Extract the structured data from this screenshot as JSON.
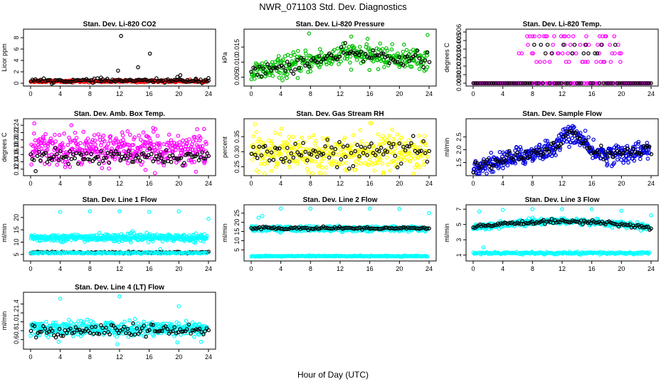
{
  "figure": {
    "title": "NWR_071103  Std. Dev. Diagnostics",
    "xlabel": "Hour of Day (UTC)"
  },
  "chart_data": [
    {
      "type": "scatter",
      "title": "Stan. Dev. Li-820 CO2",
      "ylabel": "Licor ppm",
      "xlim": [
        0,
        24
      ],
      "ylim": [
        0,
        9
      ],
      "xticks": [
        "0",
        "4",
        "8",
        "12",
        "16",
        "20",
        "24"
      ],
      "yticks": [
        "0",
        "2",
        "4",
        "6",
        "8"
      ],
      "series": [
        {
          "color": "#ff0000",
          "base": 0.35,
          "spread": 0.1,
          "n": 220,
          "symbol": "o",
          "outliers": []
        },
        {
          "color": "#000000",
          "base": 0.45,
          "spread": 0.15,
          "n": 110,
          "symbol": "o",
          "outliers": [
            [
              12.2,
              8.3
            ],
            [
              11.8,
              2.2
            ],
            [
              14.5,
              2.8
            ],
            [
              16.1,
              5.2
            ],
            [
              9.5,
              1.0
            ],
            [
              19.8,
              1.1
            ],
            [
              20.2,
              1.4
            ],
            [
              22.3,
              0.8
            ],
            [
              24.0,
              0.9
            ]
          ]
        }
      ]
    },
    {
      "type": "scatter",
      "title": "Stan. Dev. Li-820 Pressure",
      "ylabel": "kPa",
      "xlim": [
        0,
        24
      ],
      "ylim": [
        0.003,
        0.02
      ],
      "xticks": [
        "0",
        "4",
        "8",
        "12",
        "16",
        "20",
        "24"
      ],
      "yticks": [
        "0.005",
        "0.010",
        "0.015"
      ],
      "series": [
        {
          "color": "#00c000",
          "curve": "pressure",
          "spread": 0.0018,
          "n": 340,
          "symbol": "o",
          "outliers": [
            [
              7.8,
              0.0195
            ],
            [
              13.5,
              0.0185
            ],
            [
              23.8,
              0.019
            ]
          ]
        },
        {
          "color": "#000000",
          "curve": "pressure",
          "spread": 0.0012,
          "n": 90,
          "symbol": "o",
          "outliers": []
        }
      ]
    },
    {
      "type": "scatter",
      "title": "Stan. Dev. Li-820 Temp.",
      "ylabel": "degrees C",
      "xlim": [
        0,
        24
      ],
      "ylim": [
        0,
        0.006
      ],
      "xticks": [
        "0",
        "4",
        "8",
        "12",
        "16",
        "20",
        "24"
      ],
      "yticks": [
        "0.000",
        "0.001",
        "0.002",
        "0.003",
        "0.004",
        "0.005",
        "0.006"
      ],
      "series": [
        {
          "color": "#ff00ff",
          "discrete": [
            0,
            0.0025,
            0.0035,
            0.0045,
            0.0055
          ],
          "n": 260,
          "symbol": "o",
          "outliers": []
        },
        {
          "color": "#000000",
          "discrete": [
            0,
            0.0035,
            0.0045
          ],
          "n": 80,
          "symbol": "o",
          "outliers": []
        }
      ]
    },
    {
      "type": "scatter",
      "title": "Stan. Dev. Amb. Box Temp.",
      "ylabel": "degrees C",
      "xlim": [
        0,
        24
      ],
      "ylim": [
        0.11,
        0.25
      ],
      "xticks": [
        "0",
        "4",
        "8",
        "12",
        "16",
        "20",
        "24"
      ],
      "yticks": [
        "0.12",
        "0.14",
        "0.16",
        "0.18",
        "0.20",
        "0.22",
        "0.24"
      ],
      "series": [
        {
          "color": "#ff00ff",
          "base": 0.175,
          "spread": 0.022,
          "n": 420,
          "symbol": "o",
          "outliers": [
            [
              0.5,
              0.245
            ],
            [
              5.5,
              0.24
            ],
            [
              15.5,
              0.118
            ]
          ]
        },
        {
          "color": "#000000",
          "base": 0.152,
          "spread": 0.01,
          "n": 110,
          "symbol": "o",
          "outliers": []
        }
      ]
    },
    {
      "type": "scatter",
      "title": "Stan. Dev. Gas Stream RH",
      "ylabel": "percent",
      "xlim": [
        0,
        24
      ],
      "ylim": [
        0.23,
        0.4
      ],
      "xticks": [
        "0",
        "4",
        "8",
        "12",
        "16",
        "20",
        "24"
      ],
      "yticks": [
        "0.25",
        "0.30",
        "0.35"
      ],
      "series": [
        {
          "color": "#ffff00",
          "base": 0.3,
          "spread": 0.028,
          "n": 380,
          "symbol": "o",
          "outliers": [
            [
              16.2,
              0.395
            ],
            [
              0.7,
              0.365
            ]
          ]
        },
        {
          "color": "#000000",
          "base": 0.295,
          "spread": 0.02,
          "n": 90,
          "symbol": "o",
          "outliers": []
        }
      ]
    },
    {
      "type": "scatter",
      "title": "Stan. Dev. Sample Flow",
      "ylabel": "ml/min",
      "xlim": [
        0,
        24
      ],
      "ylim": [
        1.1,
        3.1
      ],
      "xticks": [
        "0",
        "4",
        "8",
        "12",
        "16",
        "20",
        "24"
      ],
      "yticks": [
        "1.5",
        "2.0",
        "2.5"
      ],
      "series": [
        {
          "color": "#0000e0",
          "curve": "flow",
          "spread": 0.18,
          "n": 420,
          "symbol": "o",
          "outliers": []
        },
        {
          "color": "#000000",
          "curve": "flow",
          "spread": 0.12,
          "n": 90,
          "symbol": "o",
          "outliers": []
        }
      ]
    },
    {
      "type": "scatter",
      "title": "Stan. Dev. Line 1 Flow",
      "ylabel": "ml/min",
      "xlim": [
        0,
        24
      ],
      "ylim": [
        3.5,
        24
      ],
      "xticks": [
        "0",
        "4",
        "8",
        "12",
        "16",
        "20",
        "24"
      ],
      "yticks": [
        "5",
        "10",
        "15",
        "20"
      ],
      "series": [
        {
          "color": "#00ffff",
          "base": 11.8,
          "spread": 0.7,
          "n": 420,
          "symbol": "o",
          "outliers": [
            [
              4.0,
              22.3
            ],
            [
              8.0,
              22.5
            ],
            [
              12.0,
              22.5
            ],
            [
              16.0,
              22.3
            ],
            [
              20.0,
              22.5
            ],
            [
              24.0,
              19.5
            ],
            [
              17.5,
              7.2
            ]
          ]
        },
        {
          "color": "#000000",
          "base": 5.8,
          "spread": 0.18,
          "n": 110,
          "symbol": "o",
          "outliers": []
        },
        {
          "color": "#00ffff",
          "base": 5.6,
          "spread": 0.15,
          "n": 140,
          "symbol": "o",
          "outliers": []
        }
      ]
    },
    {
      "type": "scatter",
      "title": "Stan. Dev. Line 2 Flow",
      "ylabel": "ml/min",
      "xlim": [
        0,
        24
      ],
      "ylim": [
        0.5,
        28
      ],
      "xticks": [
        "0",
        "4",
        "8",
        "12",
        "16",
        "20",
        "24"
      ],
      "yticks": [
        "5",
        "10",
        "15",
        "20",
        "25"
      ],
      "series": [
        {
          "color": "#00ffff",
          "base": 16.5,
          "spread": 0.7,
          "n": 420,
          "symbol": "o",
          "outliers": [
            [
              1.0,
              22.5
            ],
            [
              1.5,
              23.5
            ],
            [
              4.0,
              27.5
            ],
            [
              8.0,
              27.5
            ],
            [
              12.0,
              27.5
            ],
            [
              16.0,
              27.5
            ],
            [
              20.0,
              27.3
            ],
            [
              24.0,
              25.0
            ]
          ]
        },
        {
          "color": "#000000",
          "base": 16.8,
          "spread": 0.35,
          "n": 110,
          "symbol": "o",
          "outliers": []
        },
        {
          "color": "#00ffff",
          "base": 1.6,
          "spread": 0.15,
          "n": 200,
          "symbol": "o",
          "outliers": []
        }
      ]
    },
    {
      "type": "scatter",
      "title": "Stan. Dev. Line 3 Flow",
      "ylabel": "ml/min",
      "xlim": [
        0,
        24
      ],
      "ylim": [
        0.6,
        7.2
      ],
      "xticks": [
        "0",
        "4",
        "8",
        "12",
        "16",
        "20",
        "24"
      ],
      "yticks": [
        "1",
        "3",
        "5",
        "7"
      ],
      "series": [
        {
          "color": "#00ffff",
          "curve": "line3",
          "spread": 0.18,
          "n": 420,
          "symbol": "o",
          "outliers": [
            [
              0.8,
              6.7
            ],
            [
              4.0,
              6.9
            ],
            [
              8.0,
              7.0
            ],
            [
              12.0,
              7.0
            ],
            [
              16.0,
              7.0
            ],
            [
              20.0,
              6.8
            ],
            [
              24.0,
              6.2
            ],
            [
              1.4,
              2.0
            ]
          ]
        },
        {
          "color": "#000000",
          "curve": "line3",
          "spread": 0.12,
          "n": 110,
          "symbol": "o",
          "outliers": []
        },
        {
          "color": "#00ffff",
          "base": 1.25,
          "spread": 0.08,
          "n": 200,
          "symbol": "o",
          "outliers": []
        }
      ]
    },
    {
      "type": "scatter",
      "title": "Stan. Dev. Line 4 (LT) Flow",
      "ylabel": "ml/min",
      "xlim": [
        0,
        24
      ],
      "ylim": [
        0.45,
        1.6
      ],
      "xticks": [
        "0",
        "4",
        "8",
        "12",
        "16",
        "20",
        "24"
      ],
      "yticks": [
        "0.6",
        "0.8",
        "1.0",
        "1.2",
        "1.4"
      ],
      "series": [
        {
          "color": "#00ffff",
          "base": 0.85,
          "spread": 0.08,
          "n": 420,
          "symbol": "o",
          "outliers": [
            [
              4.0,
              1.52
            ],
            [
              12.0,
              1.57
            ],
            [
              20.0,
              1.35
            ],
            [
              3.8,
              0.55
            ],
            [
              11.7,
              0.5
            ],
            [
              19.8,
              0.54
            ],
            [
              23.0,
              0.55
            ]
          ]
        },
        {
          "color": "#000000",
          "base": 0.8,
          "spread": 0.07,
          "n": 100,
          "symbol": "o",
          "outliers": []
        }
      ]
    }
  ]
}
